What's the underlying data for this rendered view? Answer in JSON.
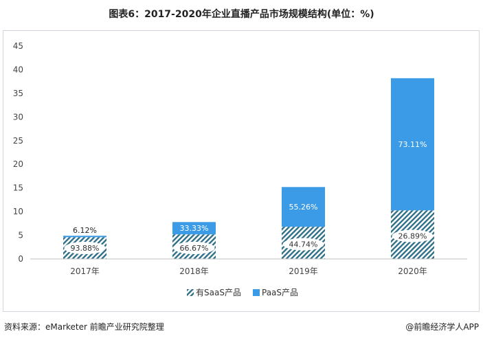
{
  "chart_data": {
    "type": "bar",
    "title": "图表6：2017-2020年企业直播产品市场规模结构(单位：%)",
    "categories": [
      "2017年",
      "2018年",
      "2019年",
      "2020年"
    ],
    "totals": [
      4.9,
      7.8,
      15.2,
      38.2
    ],
    "series": [
      {
        "name": "有SaaS产品",
        "shares": [
          93.88,
          66.67,
          44.74,
          26.89
        ],
        "labels": [
          "93.88%",
          "66.67%",
          "44.74%",
          "26.89%"
        ],
        "color": "#2e6f88",
        "pattern": "hatch"
      },
      {
        "name": "PaaS产品",
        "shares": [
          6.12,
          33.33,
          55.26,
          73.11
        ],
        "labels": [
          "6.12%",
          "33.33%",
          "55.26%",
          "73.11%"
        ],
        "color": "#3c9be6",
        "pattern": "solid"
      }
    ],
    "ylim": [
      0,
      45
    ],
    "yticks": [
      "0",
      "5",
      "10",
      "15",
      "20",
      "25",
      "30",
      "35",
      "40",
      "45"
    ],
    "grid": false,
    "legend": "bottom"
  },
  "footer": {
    "source": "资料来源：eMarketer 前瞻产业研究院整理",
    "brand": "@前瞻经济学人APP"
  }
}
